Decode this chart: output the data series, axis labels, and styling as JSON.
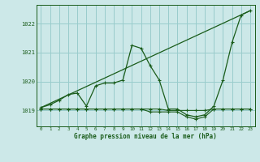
{
  "xlabel": "Graphe pression niveau de la mer (hPa)",
  "bg_color": "#cce8e8",
  "grid_color": "#99cccc",
  "line_color": "#1a5c1a",
  "x_ticks": [
    0,
    1,
    2,
    3,
    4,
    5,
    6,
    7,
    8,
    9,
    10,
    11,
    12,
    13,
    14,
    15,
    16,
    17,
    18,
    19,
    20,
    21,
    22,
    23
  ],
  "y_ticks": [
    1019,
    1020,
    1021,
    1022
  ],
  "ylim": [
    1018.45,
    1022.65
  ],
  "xlim": [
    -0.5,
    23.5
  ],
  "series1": [
    1019.1,
    1019.2,
    1019.35,
    1019.55,
    1019.6,
    1019.15,
    1019.85,
    1019.95,
    1019.95,
    1020.05,
    1021.25,
    1021.15,
    1020.55,
    1020.05,
    1019.05,
    1019.05,
    1018.85,
    1018.78,
    1018.85,
    1019.15,
    1020.05,
    1021.35,
    1022.3,
    1022.45
  ],
  "series2": [
    1019.05,
    1019.05,
    1019.05,
    1019.05,
    1019.05,
    1019.05,
    1019.05,
    1019.05,
    1019.05,
    1019.05,
    1019.05,
    1019.05,
    1019.05,
    1019.05,
    1019.0,
    1019.0,
    1019.0,
    1019.0,
    1019.0,
    1019.05,
    1019.05,
    1019.05,
    1019.05,
    1019.05
  ],
  "series3": [
    1019.05,
    1019.05,
    1019.05,
    1019.05,
    1019.05,
    1019.05,
    1019.05,
    1019.05,
    1019.05,
    1019.05,
    1019.05,
    1019.05,
    1018.95,
    1018.95,
    1018.95,
    1018.95,
    1018.78,
    1018.7,
    1018.78,
    1019.05,
    1019.05,
    1019.05,
    1019.05,
    1019.05
  ],
  "diag_line": [
    [
      0,
      23
    ],
    [
      1019.1,
      1022.45
    ]
  ]
}
